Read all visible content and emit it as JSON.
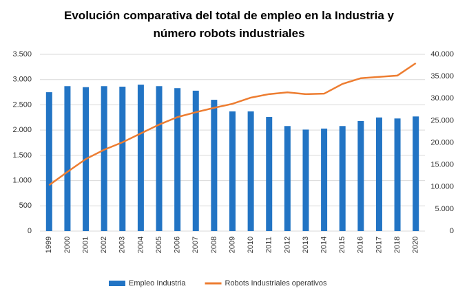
{
  "chart_data": {
    "type": "bar_line",
    "title": "Evolución comparativa del total de empleo en la Industria y número robots industriales",
    "categories": [
      "1999",
      "2000",
      "2001",
      "2002",
      "2003",
      "2004",
      "2005",
      "2006",
      "2007",
      "2008",
      "2009",
      "2010",
      "2011",
      "2012",
      "2013",
      "2014",
      "2015",
      "2016",
      "2017",
      "2018",
      "2020"
    ],
    "series": [
      {
        "name": "Empleo Industria",
        "type": "bar",
        "color": "#2274c4",
        "axis": "y",
        "values": [
          2750,
          2870,
          2850,
          2870,
          2860,
          2900,
          2870,
          2830,
          2780,
          2600,
          2370,
          2370,
          2260,
          2080,
          2010,
          2030,
          2080,
          2180,
          2250,
          2230,
          2270
        ]
      },
      {
        "name": "Robots Industriales operativos",
        "type": "line",
        "color": "#ed7d31",
        "axis": "y2",
        "values": [
          10400,
          13400,
          16300,
          18400,
          20100,
          22100,
          24100,
          25800,
          26900,
          27900,
          28800,
          30200,
          31000,
          31400,
          31000,
          31100,
          33300,
          34600,
          34900,
          35200,
          38000
        ]
      }
    ],
    "ylim": [
      0,
      3500
    ],
    "yticks": [
      0,
      500,
      {
        "value": 1000,
        "label": "1.000"
      },
      {
        "value": 1500,
        "label": "1.500"
      },
      {
        "value": 2000,
        "label": "2.000"
      },
      {
        "value": 2500,
        "label": "2.500"
      },
      {
        "value": 3000,
        "label": "3.000"
      },
      {
        "value": 3500,
        "label": "3.500"
      }
    ],
    "y2lim": [
      0,
      40000
    ],
    "y2ticks": [
      0,
      {
        "value": 5000,
        "label": "5.000"
      },
      {
        "value": 10000,
        "label": "10.000"
      },
      {
        "value": 15000,
        "label": "15.000"
      },
      {
        "value": 20000,
        "label": "20.000"
      },
      {
        "value": 25000,
        "label": "25.000"
      },
      {
        "value": 30000,
        "label": "30.000"
      },
      {
        "value": 35000,
        "label": "35.000"
      },
      {
        "value": 40000,
        "label": "40.000"
      }
    ],
    "grid": true,
    "legend": "bottom"
  }
}
